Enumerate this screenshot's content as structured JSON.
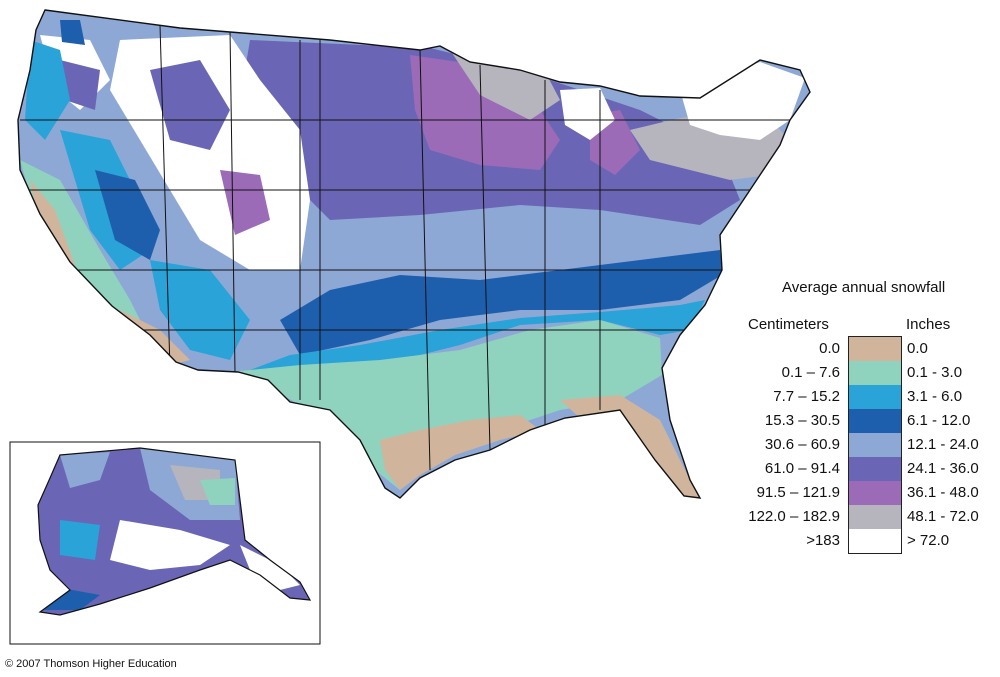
{
  "legend": {
    "title": "Average annual snowfall",
    "cm_header": "Centimeters",
    "in_header": "Inches",
    "classes": [
      {
        "cm": "0.0",
        "inches": "0.0",
        "color": "#d1b49c"
      },
      {
        "cm": "0.1 – 7.6",
        "inches": "0.1 - 3.0",
        "color": "#8fd3bf"
      },
      {
        "cm": "7.7 – 15.2",
        "inches": "3.1 - 6.0",
        "color": "#2aa3d9"
      },
      {
        "cm": "15.3 – 30.5",
        "inches": "6.1 - 12.0",
        "color": "#1e5fad"
      },
      {
        "cm": "30.6 – 60.9",
        "inches": "12.1 - 24.0",
        "color": "#8ea8d6"
      },
      {
        "cm": "61.0 – 91.4",
        "inches": "24.1 - 36.0",
        "color": "#6a66b5"
      },
      {
        "cm": "91.5 – 121.9",
        "inches": "36.1 - 48.0",
        "color": "#9b6bb8"
      },
      {
        "cm": "122.0 – 182.9",
        "inches": "48.1 - 72.0",
        "color": "#b6b4bd"
      },
      {
        "cm": ">183",
        "inches": "> 72.0",
        "color": "#ffffff"
      }
    ]
  },
  "copyright": "© 2007 Thomson Higher Education"
}
